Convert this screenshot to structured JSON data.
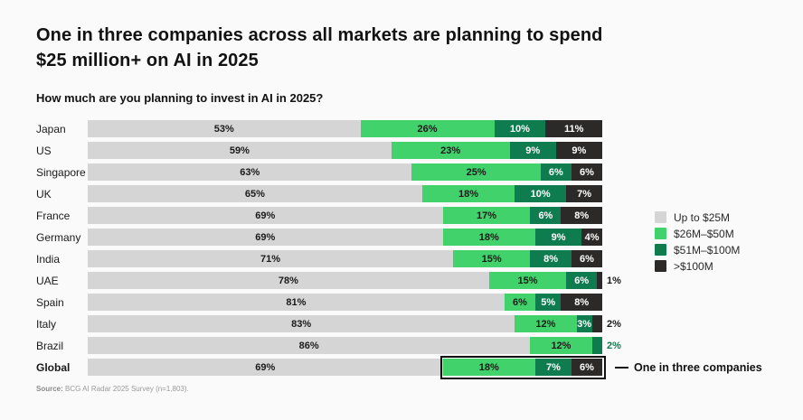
{
  "header": {
    "title_line1": "One in three companies across all markets are planning to spend",
    "title_line2": "$25 million+ on AI in 2025",
    "subtitle": "How much are you planning to invest in AI in 2025?"
  },
  "legend": {
    "position": "right",
    "items": [
      {
        "label": "Up to $25M",
        "color": "#d5d5d5"
      },
      {
        "label": "$26M–$50M",
        "color": "#42d26c"
      },
      {
        "label": "$51M–$100M",
        "color": "#0f7c4f"
      },
      {
        "label": ">$100M",
        "color": "#2b2a28"
      }
    ]
  },
  "chart_data": {
    "type": "bar",
    "orientation": "horizontal-stacked",
    "unit": "%",
    "xlim": [
      0,
      100
    ],
    "grid": false,
    "title": "One in three companies across all markets are planning to spend $25 million+ on AI in 2025",
    "xlabel": "",
    "ylabel": "",
    "categories": [
      "Japan",
      "US",
      "Singapore",
      "UK",
      "France",
      "Germany",
      "India",
      "UAE",
      "Spain",
      "Italy",
      "Brazil",
      "Global"
    ],
    "emphasized_category": "Global",
    "series": [
      {
        "name": "Up to $25M",
        "color": "#d5d5d5",
        "values": [
          53,
          59,
          63,
          65,
          69,
          69,
          71,
          78,
          81,
          83,
          86,
          69
        ]
      },
      {
        "name": "$26M–$50M",
        "color": "#42d26c",
        "values": [
          26,
          23,
          25,
          18,
          17,
          18,
          15,
          15,
          6,
          12,
          12,
          18
        ]
      },
      {
        "name": "$51M–$100M",
        "color": "#0f7c4f",
        "values": [
          10,
          9,
          6,
          10,
          6,
          9,
          8,
          6,
          5,
          3,
          2,
          7
        ]
      },
      {
        "name": ">$100M",
        "color": "#2b2a28",
        "values": [
          11,
          9,
          6,
          7,
          8,
          4,
          6,
          1,
          8,
          2,
          0,
          6
        ]
      }
    ],
    "annotation": {
      "category": "Global",
      "label": "One in three companies",
      "boxed_series": [
        "$26M–$50M",
        "$51M–$100M",
        ">$100M"
      ]
    }
  },
  "footer": {
    "source_label": "Source:",
    "source_text": " BCG AI Radar 2025 Survey (n=1,803)."
  },
  "colors": {
    "background": "#fafafa",
    "text_dark": "#1a1a1a",
    "label_on_dark": "#ffffff",
    "source_gray": "#9a9a9a"
  }
}
